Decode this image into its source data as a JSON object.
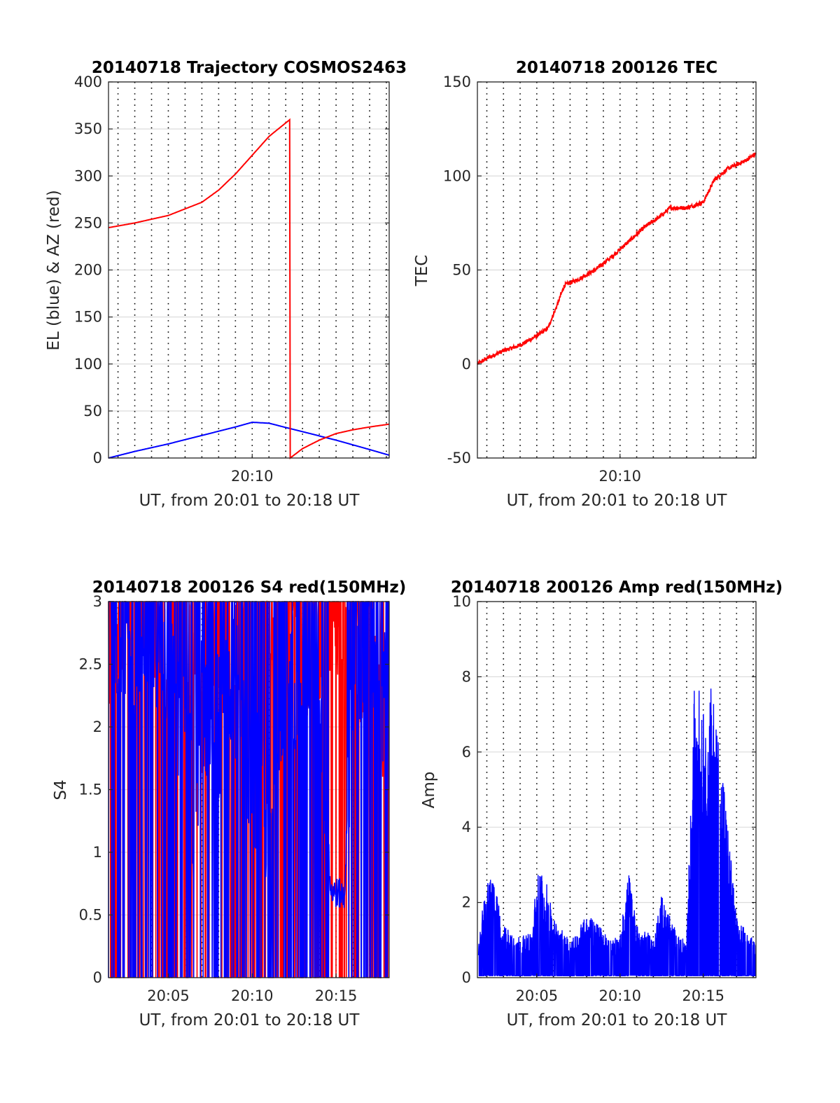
{
  "chart_data": [
    {
      "type": "line",
      "title": "20140718 Trajectory COSMOS2463",
      "xlabel": "UT, from 20:01 to 20:18 UT",
      "ylabel": "EL (blue) & AZ (red)",
      "xlim": [
        "20:01:26",
        "20:18:10"
      ],
      "ylim": [
        0,
        400
      ],
      "x_ticks": [
        "20:10"
      ],
      "y_ticks": [
        "0",
        "50",
        "100",
        "150",
        "200",
        "250",
        "300",
        "350",
        "400"
      ],
      "grid": true,
      "series": [
        {
          "name": "EL",
          "color": "#0000ff",
          "x": [
            "20:01:26",
            "20:03:00",
            "20:05:00",
            "20:07:00",
            "20:09:00",
            "20:10:00",
            "20:11:00",
            "20:13:00",
            "20:15:00",
            "20:17:00",
            "20:18:10"
          ],
          "y": [
            0,
            7,
            15,
            24,
            33,
            38,
            37,
            28,
            19,
            9,
            3
          ]
        },
        {
          "name": "AZ",
          "color": "#ff0000",
          "x": [
            "20:01:26",
            "20:03:00",
            "20:05:00",
            "20:07:00",
            "20:08:00",
            "20:09:00",
            "20:10:00",
            "20:11:00",
            "20:12:15",
            "20:12:16",
            "20:13:00",
            "20:14:00",
            "20:15:00",
            "20:16:00",
            "20:17:00",
            "20:18:10"
          ],
          "y": [
            245,
            250,
            258,
            272,
            285,
            302,
            322,
            342,
            360,
            0,
            10,
            19,
            26,
            30,
            33,
            36
          ]
        }
      ]
    },
    {
      "type": "line",
      "title": "20140718 200126 TEC",
      "xlabel": "UT, from 20:01 to 20:18 UT",
      "ylabel": "TEC",
      "xlim": [
        "20:01:26",
        "20:18:10"
      ],
      "ylim": [
        -50,
        150
      ],
      "x_ticks": [
        "20:10"
      ],
      "y_ticks": [
        "-50",
        "0",
        "50",
        "100",
        "150"
      ],
      "grid": true,
      "series": [
        {
          "name": "TEC",
          "color": "#ff0000",
          "x": [
            "20:01:26",
            "20:02:00",
            "20:03:00",
            "20:04:00",
            "20:05:00",
            "20:05:40",
            "20:06:10",
            "20:06:40",
            "20:07:30",
            "20:08:30",
            "20:09:30",
            "20:10:30",
            "20:11:30",
            "20:12:30",
            "20:13:00",
            "20:14:00",
            "20:15:00",
            "20:15:40",
            "20:16:30",
            "20:17:30",
            "20:18:10"
          ],
          "y": [
            0,
            3,
            7,
            10,
            15,
            19,
            30,
            42,
            45,
            50,
            57,
            65,
            73,
            79,
            83,
            83,
            86,
            98,
            104,
            108,
            112
          ]
        }
      ]
    },
    {
      "type": "line",
      "title": "20140718 200126 S4 red(150MHz)",
      "xlabel": "UT, from 20:01 to 20:18 UT",
      "ylabel": "S4",
      "xlim": [
        "20:01:26",
        "20:18:10"
      ],
      "ylim": [
        0,
        3
      ],
      "x_ticks": [
        "20:05",
        "20:10",
        "20:15"
      ],
      "y_ticks": [
        "0",
        "0.5",
        "1",
        "1.5",
        "2",
        "2.5",
        "3"
      ],
      "grid": true,
      "series": [
        {
          "name": "red (150MHz)",
          "color": "#ff0000",
          "x": [
            "20:01:26",
            "20:02:00",
            "20:03:00",
            "20:04:00",
            "20:05:00",
            "20:06:00",
            "20:07:00",
            "20:08:00",
            "20:09:00",
            "20:10:00",
            "20:11:00",
            "20:12:00",
            "20:13:00",
            "20:14:00",
            "20:15:00",
            "20:16:00",
            "20:17:00",
            "20:18:10"
          ],
          "y": [
            2.2,
            3.0,
            2.8,
            3.0,
            2.5,
            3.0,
            2.2,
            2.6,
            2.5,
            2.8,
            2.4,
            2.9,
            2.7,
            2.6,
            3.0,
            3.0,
            2.2,
            2.0
          ]
        },
        {
          "name": "blue",
          "color": "#0000ff",
          "x": [
            "20:01:26",
            "20:02:00",
            "20:03:00",
            "20:04:00",
            "20:05:00",
            "20:06:00",
            "20:06:30",
            "20:07:00",
            "20:08:00",
            "20:09:00",
            "20:10:00",
            "20:11:00",
            "20:12:00",
            "20:13:00",
            "20:14:00",
            "20:14:40",
            "20:15:30",
            "20:16:00",
            "20:17:00",
            "20:18:10"
          ],
          "y": [
            3.0,
            2.8,
            2.6,
            2.9,
            2.4,
            1.9,
            1.3,
            2.2,
            2.0,
            2.3,
            1.7,
            1.2,
            2.2,
            2.6,
            2.4,
            0.7,
            0.65,
            2.5,
            2.8,
            2.0
          ]
        }
      ]
    },
    {
      "type": "line",
      "title": "20140718 200126 Amp red(150MHz)",
      "xlabel": "UT, from 20:01 to 20:18 UT",
      "ylabel": "Amp",
      "xlim": [
        "20:01:26",
        "20:18:10"
      ],
      "ylim": [
        0,
        10
      ],
      "x_ticks": [
        "20:05",
        "20:10",
        "20:15"
      ],
      "y_ticks": [
        "0",
        "2",
        "4",
        "6",
        "8",
        "10"
      ],
      "grid": true,
      "series": [
        {
          "name": "Amp",
          "color": "#0000ff",
          "x": [
            "20:01:26",
            "20:01:45",
            "20:02:15",
            "20:03:00",
            "20:04:00",
            "20:04:45",
            "20:05:00",
            "20:05:30",
            "20:06:00",
            "20:07:00",
            "20:08:00",
            "20:09:00",
            "20:09:20",
            "20:10:00",
            "20:10:30",
            "20:11:00",
            "20:12:00",
            "20:12:30",
            "20:13:30",
            "20:14:00",
            "20:14:30",
            "20:15:00",
            "20:15:30",
            "20:16:00",
            "20:17:00",
            "20:18:10"
          ],
          "y": [
            0.6,
            1.9,
            2.9,
            1.4,
            1.1,
            1.2,
            3.0,
            2.7,
            1.6,
            1.0,
            1.7,
            1.3,
            1.0,
            1.1,
            2.9,
            1.4,
            1.1,
            2.2,
            1.1,
            1.0,
            8.3,
            7.1,
            7.8,
            6.3,
            1.6,
            0.9
          ]
        }
      ]
    }
  ]
}
